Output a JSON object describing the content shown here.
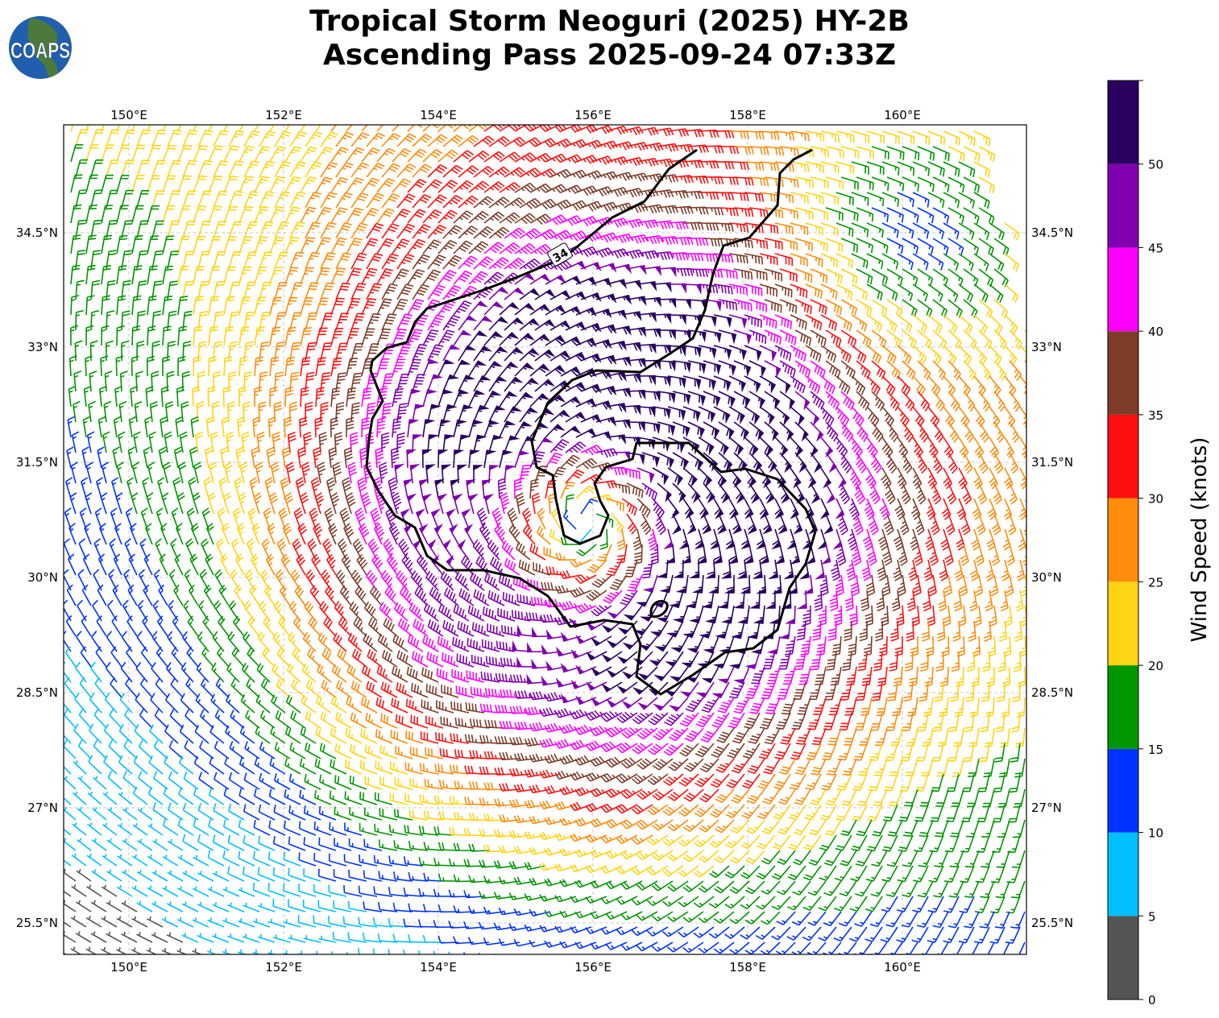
{
  "title": {
    "line1": "Tropical Storm Neoguri (2025) HY-2B",
    "line2": "Ascending Pass 2025-09-24 07:33Z"
  },
  "logo": {
    "text": "COAPS",
    "ocean_color": "#1f5fae",
    "land_color": "#4d7a3a"
  },
  "map": {
    "lon_ticks": [
      "150°E",
      "152°E",
      "154°E",
      "156°E",
      "158°E",
      "160°E"
    ],
    "lat_ticks": [
      "34.5°N",
      "33°N",
      "31.5°N",
      "30°N",
      "28.5°N",
      "27°N",
      "25.5°N"
    ],
    "contour_label": "34",
    "contour_color": "#000000",
    "gridlines": true
  },
  "chart_data": {
    "type": "wind-barb map",
    "xlabel": "",
    "ylabel": "",
    "lon_range": [
      149.2,
      161.6
    ],
    "lat_range": [
      25.1,
      35.9
    ],
    "storm_center_approx": {
      "lon": 156.0,
      "lat": 30.8
    },
    "contour_level_knots": 34,
    "colorbar": {
      "label": "Wind Speed (knots)",
      "range": [
        0,
        55
      ],
      "ticks": [
        "0",
        "5",
        "10",
        "15",
        "20",
        "25",
        "30",
        "35",
        "40",
        "45",
        "50"
      ],
      "levels": [
        0,
        5,
        10,
        15,
        20,
        25,
        30,
        35,
        40,
        45,
        50,
        55
      ],
      "colors": [
        "#555555",
        "#00bfff",
        "#0033ff",
        "#009600",
        "#ffd414",
        "#ff8c0a",
        "#ff1010",
        "#7f3c28",
        "#ff00ff",
        "#8000b0",
        "#2a0060"
      ]
    }
  }
}
